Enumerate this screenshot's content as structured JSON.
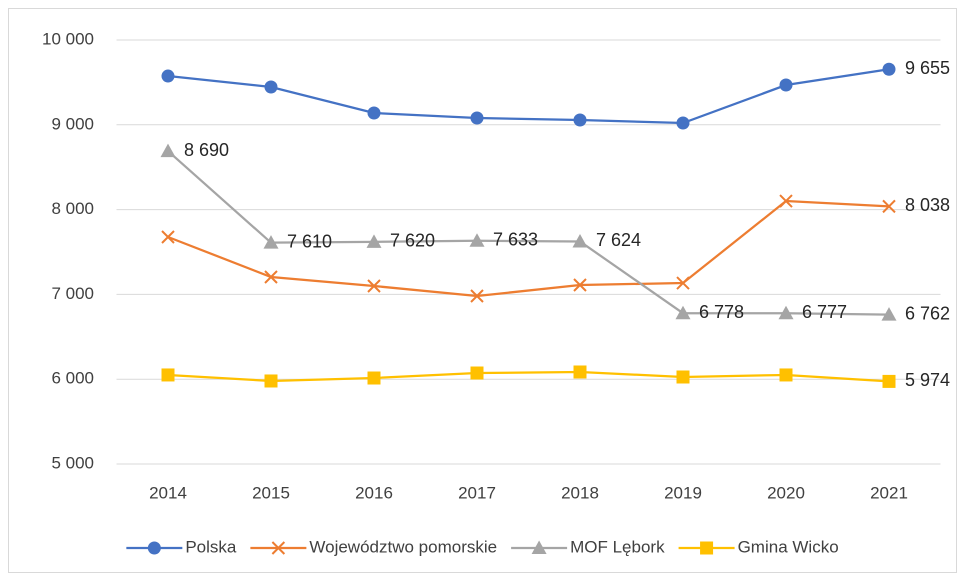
{
  "chart_data": {
    "type": "line",
    "categories": [
      "2014",
      "2015",
      "2016",
      "2017",
      "2018",
      "2019",
      "2020",
      "2021"
    ],
    "series": [
      {
        "name": "Polska",
        "color": "#4472c4",
        "marker": "circle",
        "values": [
          9575,
          9446,
          9139,
          9080,
          9057,
          9021,
          9469,
          9655
        ],
        "value_labels": [
          null,
          null,
          null,
          null,
          null,
          null,
          null,
          "9 655"
        ]
      },
      {
        "name": "Województwo pomorskie",
        "color": "#ed7d31",
        "marker": "x",
        "values": [
          7677,
          7205,
          7099,
          6981,
          7111,
          7134,
          8101,
          8038
        ],
        "value_labels": [
          null,
          null,
          null,
          null,
          null,
          null,
          null,
          "8 038"
        ]
      },
      {
        "name": "MOF Lębork",
        "color": "#a5a5a5",
        "marker": "triangle",
        "values": [
          8690,
          7610,
          7620,
          7633,
          7624,
          6778,
          6777,
          6762
        ],
        "value_labels": [
          "8 690",
          "7 610",
          "7 620",
          "7 633",
          "7 624",
          "6 778",
          "6 777",
          "6 762"
        ]
      },
      {
        "name": "Gmina Wicko",
        "color": "#ffc000",
        "marker": "square",
        "values": [
          6050,
          5979,
          6014,
          6073,
          6085,
          6026,
          6050,
          5974
        ],
        "value_labels": [
          null,
          null,
          null,
          null,
          null,
          null,
          null,
          "5 974"
        ]
      }
    ],
    "ylim": [
      5000,
      10000
    ],
    "yticks": [
      {
        "value": 5000,
        "label": "5 000"
      },
      {
        "value": 6000,
        "label": "6 000"
      },
      {
        "value": 7000,
        "label": "7 000"
      },
      {
        "value": 8000,
        "label": "8 000"
      },
      {
        "value": 9000,
        "label": "9 000"
      },
      {
        "value": 10000,
        "label": "10 000"
      }
    ],
    "grid": true,
    "legend": "bottom"
  }
}
